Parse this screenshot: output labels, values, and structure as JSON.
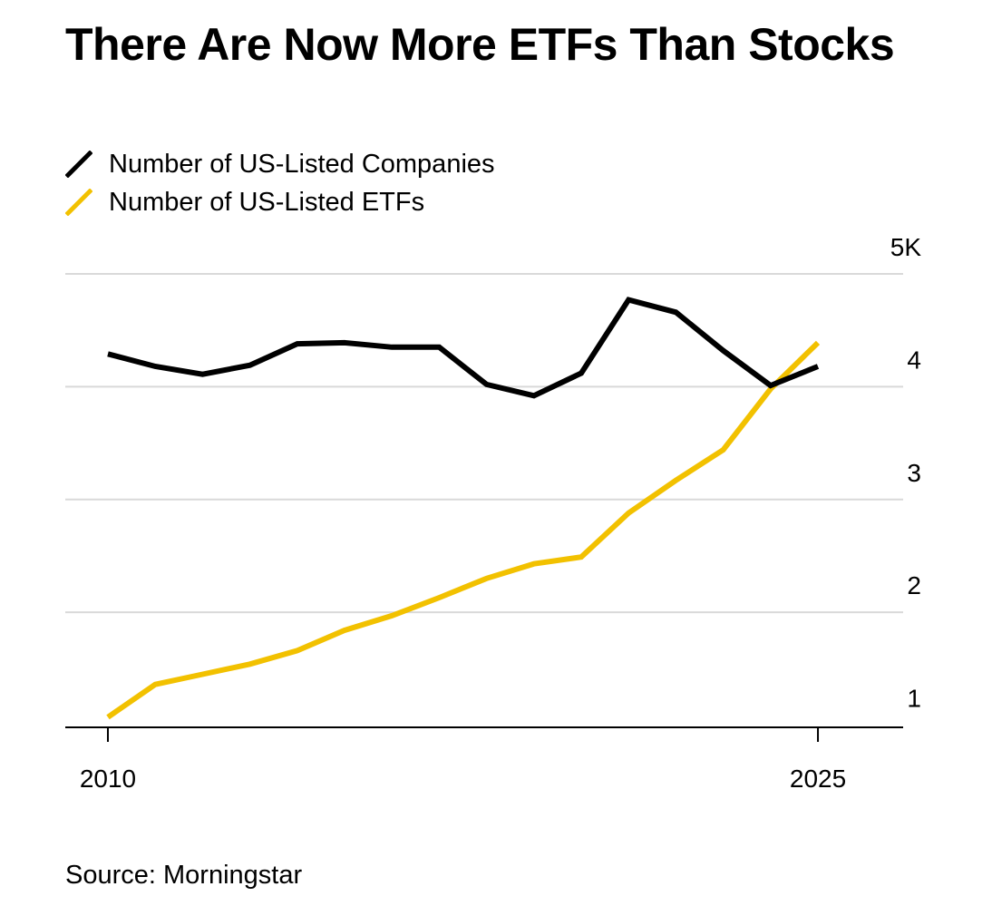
{
  "title": "There Are Now More ETFs Than Stocks",
  "source": "Source: Morningstar",
  "chart_data": {
    "type": "line",
    "title": "There Are Now More ETFs Than Stocks",
    "x_tick_labels": [
      "2010",
      "2025"
    ],
    "y_ticks": [
      {
        "value": 1,
        "label": "1"
      },
      {
        "value": 2,
        "label": "2"
      },
      {
        "value": 3,
        "label": "3"
      },
      {
        "value": 4,
        "label": "4"
      },
      {
        "value": 5,
        "label": "5K"
      }
    ],
    "xlim": [
      2009.1,
      2026.8
    ],
    "ylim": [
      0.98,
      5.0
    ],
    "grid": true,
    "legend_position": "top-left",
    "y_axis_side": "right",
    "x": [
      2010,
      2011,
      2012,
      2013,
      2014,
      2015,
      2016,
      2017,
      2018,
      2019,
      2020,
      2021,
      2022,
      2023,
      2024,
      2025
    ],
    "series": [
      {
        "name": "Number of US-Listed Companies",
        "color": "#000000",
        "values": [
          4.29,
          4.18,
          4.11,
          4.19,
          4.38,
          4.39,
          4.35,
          4.35,
          4.02,
          3.92,
          4.12,
          4.77,
          4.66,
          4.32,
          4.01,
          4.18
        ]
      },
      {
        "name": "Number of US-Listed ETFs",
        "color": "#f2c100",
        "values": [
          1.07,
          1.36,
          1.45,
          1.54,
          1.66,
          1.84,
          1.97,
          2.13,
          2.3,
          2.43,
          2.49,
          2.88,
          3.17,
          3.44,
          3.98,
          4.39
        ]
      }
    ]
  }
}
